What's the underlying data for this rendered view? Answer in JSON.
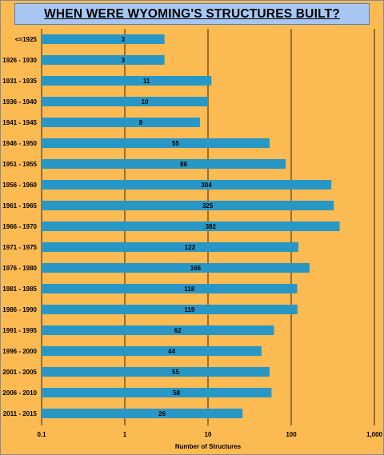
{
  "chart_data": {
    "type": "bar",
    "orientation": "horizontal",
    "title": "WHEN WERE WYOMING'S STRUCTURES BUILT?",
    "xlabel": "Number of Structures",
    "ylabel": "",
    "xscale": "log",
    "xlim": [
      0.1,
      1000
    ],
    "xticks": [
      "0.1",
      "1",
      "10",
      "100",
      "1,000"
    ],
    "grid": "vertical",
    "categories": [
      "<=1925",
      "1926 - 1930",
      "1931 - 1935",
      "1936 - 1940",
      "1941 - 1945",
      "1946 - 1950",
      "1951 - 1955",
      "1956 - 1960",
      "1961 - 1965",
      "1966 - 1970",
      "1971 - 1975",
      "1976 - 1980",
      "1981 - 1985",
      "1986 - 1990",
      "1991 - 1995",
      "1996 - 2000",
      "2001 - 2005",
      "2006 - 2010",
      "2011 - 2015"
    ],
    "values": [
      3,
      3,
      11,
      10,
      8,
      55,
      86,
      304,
      325,
      382,
      122,
      166,
      118,
      119,
      62,
      44,
      55,
      58,
      26
    ],
    "colors": {
      "background": "#fcba52",
      "bar": "#2997c6",
      "title_box": "#a7c7f2",
      "grid": "#000000"
    }
  }
}
